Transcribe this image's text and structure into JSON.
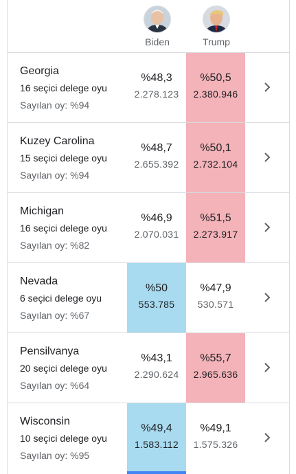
{
  "candidates": [
    {
      "name": "Biden",
      "avatar_icon": "biden-avatar-icon"
    },
    {
      "name": "Trump",
      "avatar_icon": "trump-avatar-icon"
    }
  ],
  "colors": {
    "biden_win": "#a8daf0",
    "trump_win": "#f3b3b9"
  },
  "states": [
    {
      "name": "Georgia",
      "delegates": "16 seçici delege oyu",
      "counted": "Sayılan oy: %94",
      "biden_pct": "%48,3",
      "biden_votes": "2.278.123",
      "trump_pct": "%50,5",
      "trump_votes": "2.380.946",
      "leader": "trump"
    },
    {
      "name": "Kuzey Carolina",
      "delegates": "15 seçici delege oyu",
      "counted": "Sayılan oy: %94",
      "biden_pct": "%48,7",
      "biden_votes": "2.655.392",
      "trump_pct": "%50,1",
      "trump_votes": "2.732.104",
      "leader": "trump"
    },
    {
      "name": "Michigan",
      "delegates": "16 seçici delege oyu",
      "counted": "Sayılan oy: %82",
      "biden_pct": "%46,9",
      "biden_votes": "2.070.031",
      "trump_pct": "%51,5",
      "trump_votes": "2.273.917",
      "leader": "trump"
    },
    {
      "name": "Nevada",
      "delegates": "6 seçici delege oyu",
      "counted": "Sayılan oy: %67",
      "biden_pct": "%50",
      "biden_votes": "553.785",
      "trump_pct": "%47,9",
      "trump_votes": "530.571",
      "leader": "biden"
    },
    {
      "name": "Pensilvanya",
      "delegates": "20 seçici delege oyu",
      "counted": "Sayılan oy: %64",
      "biden_pct": "%43,1",
      "biden_votes": "2.290.624",
      "trump_pct": "%55,7",
      "trump_votes": "2.965.636",
      "leader": "trump"
    },
    {
      "name": "Wisconsin",
      "delegates": "10 seçici delege oyu",
      "counted": "Sayılan oy: %95",
      "biden_pct": "%49,4",
      "biden_votes": "1.583.112",
      "trump_pct": "%49,1",
      "trump_votes": "1.575.326",
      "leader": "biden"
    }
  ]
}
